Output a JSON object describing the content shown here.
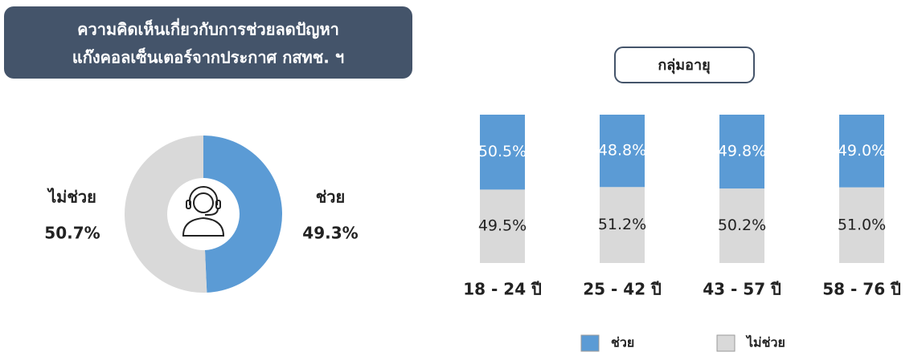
{
  "chart_data": [
    {
      "type": "donut",
      "title": [
        "ความคิดเห็นเกี่ยวกับการช่วยลดปัญหา",
        "แก๊งคอลเซ็นเตอร์จากประกาศ กสทช. ฯ"
      ],
      "categories": [
        "ช่วย",
        "ไม่ช่วย"
      ],
      "values": [
        49.3,
        50.7
      ],
      "value_labels": [
        "49.3%",
        "50.7%"
      ],
      "colors": [
        "#5b9bd5",
        "#d9d9d9"
      ]
    },
    {
      "type": "stacked_bar",
      "title": "กลุ่มอายุ",
      "categories": [
        "18 - 24 ปี",
        "25 - 42 ปี",
        "43 - 57 ปี",
        "58 - 76 ปี"
      ],
      "ylim": [
        0,
        100
      ],
      "series": [
        {
          "name": "ไม่ช่วย",
          "color": "#d9d9d9",
          "values": [
            49.5,
            51.2,
            50.2,
            51.0
          ],
          "value_labels": [
            "49.5%",
            "51.2%",
            "50.2%",
            "51.0%"
          ]
        },
        {
          "name": "ช่วย",
          "color": "#5b9bd5",
          "values": [
            50.5,
            48.8,
            49.8,
            49.0
          ],
          "value_labels": [
            "50.5%",
            "48.8%",
            "49.8%",
            "49.0%"
          ]
        }
      ]
    }
  ]
}
